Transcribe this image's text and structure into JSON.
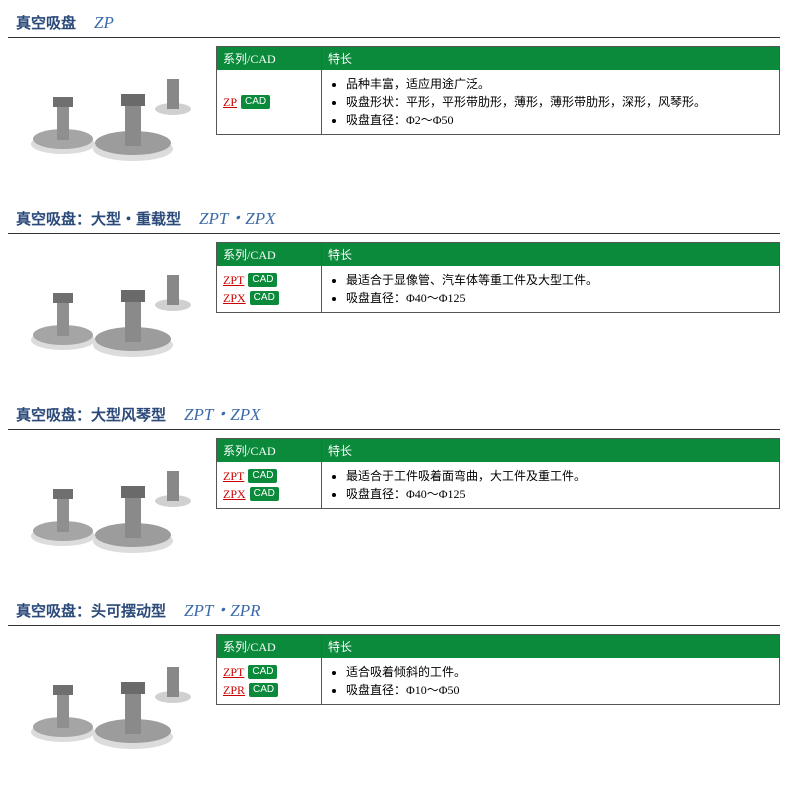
{
  "labels": {
    "series_cad_header": "系列/CAD",
    "features_header": "特长",
    "cad_badge_text": "CAD"
  },
  "colors": {
    "header_green": "#0a8a3a",
    "link_red": "#cc0000",
    "title_blue_zh": "#2b4a7a",
    "title_blue_en": "#3a6aa8",
    "border": "#555555",
    "divider": "#333333"
  },
  "sections": [
    {
      "title_zh": "真空吸盘",
      "title_en": "ZP",
      "series": [
        {
          "name": "ZP"
        }
      ],
      "features": [
        "品种丰富，适应用途广泛。",
        "吸盘形状：平形，平形带肋形，薄形，薄形带肋形，深形，风琴形。",
        "吸盘直径：Φ2～Φ50"
      ]
    },
    {
      "title_zh": "真空吸盘：大型・重载型",
      "title_en": "ZPT・ZPX",
      "series": [
        {
          "name": "ZPT"
        },
        {
          "name": "ZPX"
        }
      ],
      "features": [
        "最适合于显像管、汽车体等重工件及大型工件。",
        "吸盘直径：Φ40～Φ125"
      ]
    },
    {
      "title_zh": "真空吸盘：大型风琴型",
      "title_en": "ZPT・ZPX",
      "series": [
        {
          "name": "ZPT"
        },
        {
          "name": "ZPX"
        }
      ],
      "features": [
        "最适合于工件吸着面弯曲，大工件及重工件。",
        "吸盘直径：Φ40～Φ125"
      ]
    },
    {
      "title_zh": "真空吸盘：头可摆动型",
      "title_en": "ZPT・ZPR",
      "series": [
        {
          "name": "ZPT"
        },
        {
          "name": "ZPR"
        }
      ],
      "features": [
        "适合吸着倾斜的工件。",
        "吸盘直径：Φ10～Φ50"
      ]
    }
  ]
}
